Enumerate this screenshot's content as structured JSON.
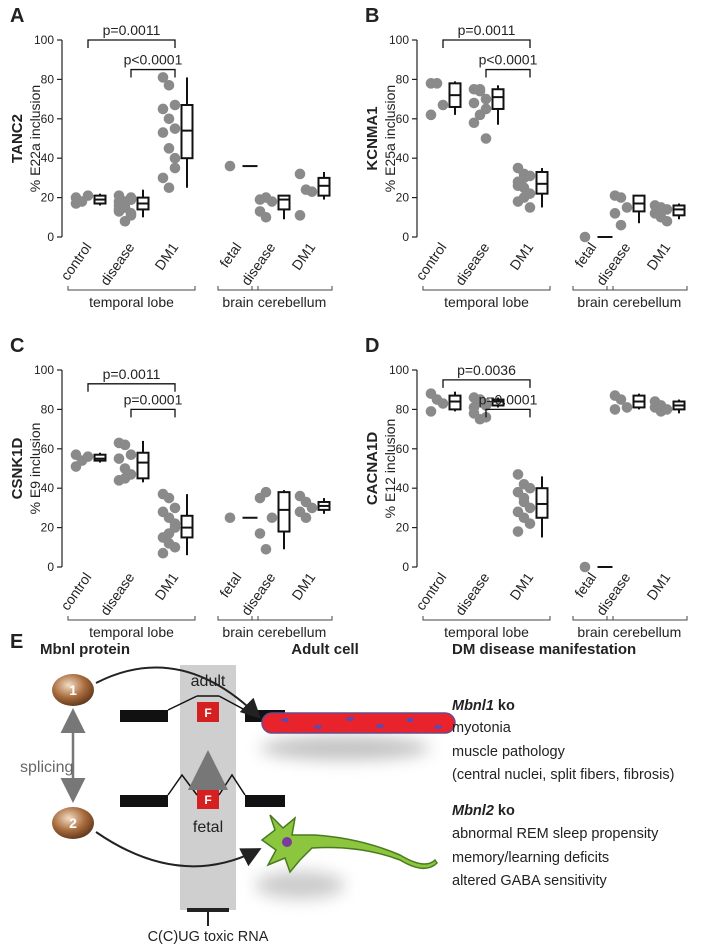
{
  "chart_data": [
    {
      "type": "box",
      "panel": "A",
      "gene": "TANC2",
      "ylabel": "% E22a inclusion",
      "ylim": [
        0,
        100
      ],
      "yticks": [
        0,
        20,
        40,
        60,
        80,
        100
      ],
      "groups": [
        {
          "name": "temporal lobe",
          "categories": [
            {
              "name": "control",
              "points": [
                17,
                18,
                21,
                20
              ],
              "box": {
                "min": 16,
                "q1": 17,
                "median": 19,
                "q3": 21,
                "max": 22
              }
            },
            {
              "name": "disease",
              "points": [
                14,
                17,
                19,
                21,
                15,
                20,
                13,
                8,
                12,
                18,
                15,
                11,
                16,
                18,
                19
              ],
              "box": {
                "min": 10,
                "q1": 14,
                "median": 17,
                "q3": 20,
                "max": 24
              }
            },
            {
              "name": "DM1",
              "points": [
                81,
                77,
                67,
                65,
                60,
                55,
                53,
                45,
                40,
                30,
                25,
                35
              ],
              "box": {
                "min": 25,
                "q1": 40,
                "median": 54,
                "q3": 67,
                "max": 81
              }
            }
          ]
        },
        {
          "name": "brain",
          "categories": [
            {
              "name": "fetal",
              "points": [
                36
              ],
              "box": {
                "min": 36,
                "q1": 36,
                "median": 36,
                "q3": 36,
                "max": 36
              }
            }
          ]
        },
        {
          "name": "cerebellum",
          "categories": [
            {
              "name": "disease",
              "points": [
                19,
                20,
                18,
                13,
                10
              ],
              "box": {
                "min": 9,
                "q1": 14,
                "median": 19,
                "q3": 21,
                "max": 21
              }
            },
            {
              "name": "DM1",
              "points": [
                32,
                24,
                23,
                11
              ],
              "box": {
                "min": 19,
                "q1": 21,
                "median": 26,
                "q3": 30,
                "max": 33
              }
            }
          ]
        }
      ],
      "brackets": [
        {
          "text": "p=0.0011",
          "from": 0,
          "to": 2,
          "y": 100
        },
        {
          "text": "p<0.0001",
          "from": 1,
          "to": 2,
          "y": 85
        }
      ]
    },
    {
      "type": "box",
      "panel": "B",
      "gene": "KCNMA1",
      "ylabel": "% E25a inclusion",
      "ylim": [
        0,
        100
      ],
      "yticks": [
        0,
        20,
        40,
        60,
        80,
        100
      ],
      "groups": [
        {
          "name": "temporal lobe",
          "categories": [
            {
              "name": "control",
              "points": [
                78,
                78,
                67,
                62
              ],
              "box": {
                "min": 62,
                "q1": 66,
                "median": 72,
                "q3": 78,
                "max": 79
              }
            },
            {
              "name": "disease",
              "points": [
                75,
                74,
                70,
                68,
                75,
                65,
                58,
                62,
                50
              ],
              "box": {
                "min": 57,
                "q1": 65,
                "median": 71,
                "q3": 75,
                "max": 77
              }
            },
            {
              "name": "DM1",
              "points": [
                35,
                32,
                31,
                28,
                25,
                22,
                18,
                20,
                15,
                26,
                30
              ],
              "box": {
                "min": 15,
                "q1": 22,
                "median": 27,
                "q3": 33,
                "max": 35
              }
            }
          ]
        },
        {
          "name": "brain",
          "categories": [
            {
              "name": "fetal",
              "points": [
                0
              ],
              "box": {
                "min": 0,
                "q1": 0,
                "median": 0,
                "q3": 0,
                "max": 0
              }
            }
          ]
        },
        {
          "name": "cerebellum",
          "categories": [
            {
              "name": "disease",
              "points": [
                21,
                20,
                15,
                12,
                6
              ],
              "box": {
                "min": 7,
                "q1": 13,
                "median": 17,
                "q3": 21,
                "max": 21
              }
            },
            {
              "name": "DM1",
              "points": [
                16,
                15,
                14,
                12,
                10,
                8
              ],
              "box": {
                "min": 9,
                "q1": 11,
                "median": 14,
                "q3": 16,
                "max": 17
              }
            }
          ]
        }
      ],
      "brackets": [
        {
          "text": "p=0.0011",
          "from": 0,
          "to": 2,
          "y": 100
        },
        {
          "text": "p<0.0001",
          "from": 1,
          "to": 2,
          "y": 85
        }
      ]
    },
    {
      "type": "box",
      "panel": "C",
      "gene": "CSNK1D",
      "ylabel": "% E9 inclusion",
      "ylim": [
        0,
        100
      ],
      "yticks": [
        0,
        20,
        40,
        60,
        80,
        100
      ],
      "groups": [
        {
          "name": "temporal lobe",
          "categories": [
            {
              "name": "control",
              "points": [
                51,
                54,
                56,
                57
              ],
              "box": {
                "min": 53,
                "q1": 54,
                "median": 55,
                "q3": 57,
                "max": 58
              }
            },
            {
              "name": "disease",
              "points": [
                63,
                62,
                57,
                55,
                50,
                47,
                44,
                45
              ],
              "box": {
                "min": 43,
                "q1": 45,
                "median": 53,
                "q3": 58,
                "max": 64
              }
            },
            {
              "name": "DM1",
              "points": [
                37,
                35,
                30,
                28,
                25,
                20,
                15,
                12,
                10,
                7,
                17,
                22
              ],
              "box": {
                "min": 6,
                "q1": 15,
                "median": 20,
                "q3": 26,
                "max": 37
              }
            }
          ]
        },
        {
          "name": "brain",
          "categories": [
            {
              "name": "fetal",
              "points": [
                25
              ],
              "box": {
                "min": 25,
                "q1": 25,
                "median": 25,
                "q3": 25,
                "max": 25
              }
            }
          ]
        },
        {
          "name": "cerebellum",
          "categories": [
            {
              "name": "disease",
              "points": [
                35,
                38,
                25,
                17,
                9
              ],
              "box": {
                "min": 9,
                "q1": 18,
                "median": 29,
                "q3": 38,
                "max": 39
              }
            },
            {
              "name": "DM1",
              "points": [
                36,
                33,
                30,
                28,
                25
              ],
              "box": {
                "min": 27,
                "q1": 29,
                "median": 31,
                "q3": 33,
                "max": 35
              }
            }
          ]
        }
      ],
      "brackets": [
        {
          "text": "p=0.0011",
          "from": 0,
          "to": 2,
          "y": 93
        },
        {
          "text": "p=0.0001",
          "from": 1,
          "to": 2,
          "y": 80
        }
      ]
    },
    {
      "type": "box",
      "panel": "D",
      "gene": "CACNA1D",
      "ylabel": "% E12 inclusion",
      "ylim": [
        0,
        100
      ],
      "yticks": [
        0,
        20,
        40,
        60,
        80,
        100
      ],
      "groups": [
        {
          "name": "temporal lobe",
          "categories": [
            {
              "name": "control",
              "points": [
                88,
                85,
                83,
                79
              ],
              "box": {
                "min": 79,
                "q1": 80,
                "median": 84,
                "q3": 87,
                "max": 89
              }
            },
            {
              "name": "disease",
              "points": [
                86,
                85,
                83,
                81,
                84,
                82,
                78,
                75,
                76
              ],
              "box": {
                "min": 81,
                "q1": 82,
                "median": 84,
                "q3": 85,
                "max": 86
              }
            },
            {
              "name": "DM1",
              "points": [
                47,
                42,
                40,
                38,
                35,
                30,
                28,
                25,
                22,
                18,
                33
              ],
              "box": {
                "min": 15,
                "q1": 25,
                "median": 32,
                "q3": 40,
                "max": 46
              }
            }
          ]
        },
        {
          "name": "brain",
          "categories": [
            {
              "name": "fetal",
              "points": [
                0
              ],
              "box": {
                "min": 0,
                "q1": 0,
                "median": 0,
                "q3": 0,
                "max": 0
              }
            }
          ]
        },
        {
          "name": "cerebellum",
          "categories": [
            {
              "name": "disease",
              "points": [
                87,
                85,
                81,
                80
              ],
              "box": {
                "min": 80,
                "q1": 81,
                "median": 84,
                "q3": 87,
                "max": 88
              }
            },
            {
              "name": "DM1",
              "points": [
                84,
                82,
                80,
                81,
                79
              ],
              "box": {
                "min": 78,
                "q1": 80,
                "median": 82,
                "q3": 84,
                "max": 85
              }
            }
          ]
        }
      ],
      "brackets": [
        {
          "text": "p=0.0036",
          "from": 0,
          "to": 2,
          "y": 95
        },
        {
          "text": "p=0.0001",
          "from": 1,
          "to": 2,
          "y": 80
        }
      ]
    }
  ],
  "diagram": {
    "panel": "E",
    "col1": "Mbnl protein",
    "col2": "Adult cell",
    "col3": "DM disease manifestation",
    "protein1": "1",
    "protein2": "2",
    "adult": "adult",
    "fetal": "fetal",
    "exon_adult": "F",
    "exon_fetal": "F",
    "splicing": "splicing",
    "toxic": "C(C)UG toxic RNA",
    "ko1": {
      "gene": "Mbnl1",
      "suffix": " ko",
      "items": [
        "myotonia",
        "muscle pathology",
        "(central nuclei, split fibers, fibrosis)"
      ]
    },
    "ko2": {
      "gene": "Mbnl2",
      "suffix": " ko",
      "items": [
        "abnormal REM sleep propensity",
        "memory/learning deficits",
        "altered GABA sensitivity"
      ]
    }
  }
}
